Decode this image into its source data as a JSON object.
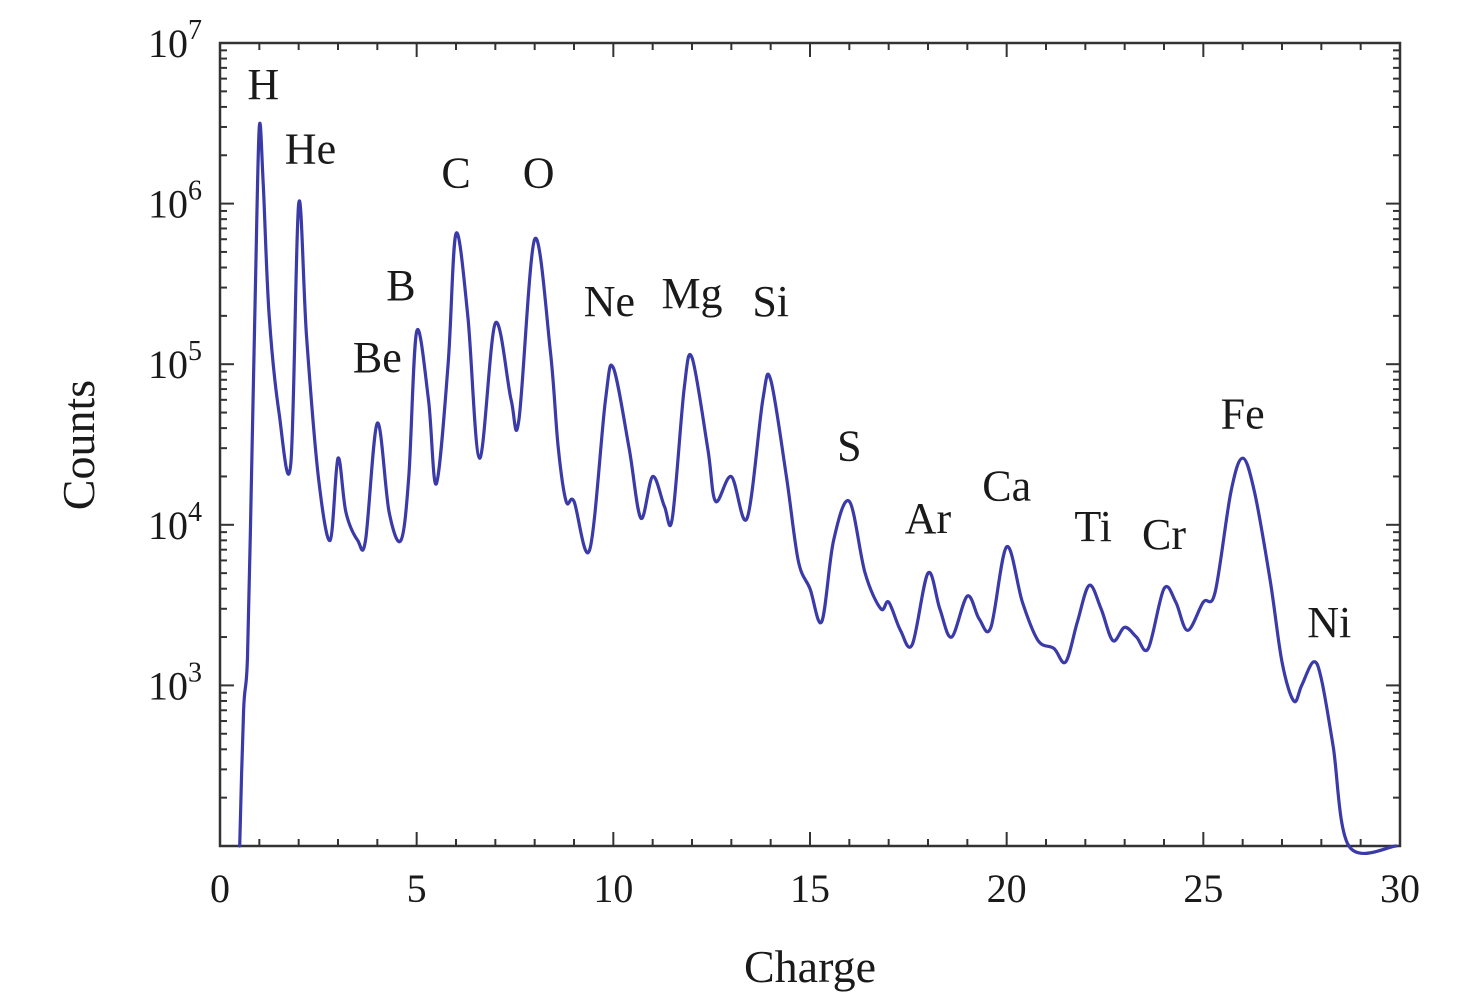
{
  "chart_data": {
    "type": "line",
    "xlabel": "Charge",
    "ylabel": "Counts",
    "xlim": [
      0,
      30
    ],
    "ylim_log10": [
      2.0,
      7.0
    ],
    "yscale": "log",
    "grid": false,
    "legend": "none",
    "x_ticks": [
      0,
      5,
      10,
      15,
      20,
      25,
      30
    ],
    "y_ticks": [
      {
        "base": "10",
        "exp": "3",
        "value": 1000
      },
      {
        "base": "10",
        "exp": "4",
        "value": 10000
      },
      {
        "base": "10",
        "exp": "5",
        "value": 100000
      },
      {
        "base": "10",
        "exp": "6",
        "value": 1000000
      },
      {
        "base": "10",
        "exp": "7",
        "value": 10000000
      }
    ],
    "series": [
      {
        "color": "#3a3aa8",
        "points": [
          [
            0.5,
            100
          ],
          [
            0.6,
            700
          ],
          [
            0.7,
            1500
          ],
          [
            0.8,
            20000
          ],
          [
            0.9,
            300000
          ],
          [
            1.0,
            3000000
          ],
          [
            1.1,
            1300000
          ],
          [
            1.25,
            200000
          ],
          [
            1.5,
            50000
          ],
          [
            1.8,
            24000
          ],
          [
            2.0,
            1000000
          ],
          [
            2.2,
            150000
          ],
          [
            2.5,
            20000
          ],
          [
            2.8,
            8000
          ],
          [
            3.0,
            26000
          ],
          [
            3.2,
            12000
          ],
          [
            3.5,
            8000
          ],
          [
            3.7,
            8000
          ],
          [
            4.0,
            43000
          ],
          [
            4.3,
            12000
          ],
          [
            4.6,
            8000
          ],
          [
            4.8,
            20000
          ],
          [
            5.0,
            160000
          ],
          [
            5.3,
            60000
          ],
          [
            5.5,
            18000
          ],
          [
            5.8,
            100000
          ],
          [
            6.0,
            650000
          ],
          [
            6.3,
            200000
          ],
          [
            6.6,
            26000
          ],
          [
            7.0,
            180000
          ],
          [
            7.4,
            60000
          ],
          [
            7.6,
            45000
          ],
          [
            8.0,
            600000
          ],
          [
            8.4,
            120000
          ],
          [
            8.6,
            30000
          ],
          [
            8.8,
            14000
          ],
          [
            9.0,
            14000
          ],
          [
            9.4,
            7000
          ],
          [
            9.8,
            60000
          ],
          [
            10.0,
            95000
          ],
          [
            10.4,
            30000
          ],
          [
            10.7,
            11000
          ],
          [
            11.0,
            20000
          ],
          [
            11.3,
            13000
          ],
          [
            11.5,
            11000
          ],
          [
            11.8,
            70000
          ],
          [
            12.0,
            110000
          ],
          [
            12.4,
            30000
          ],
          [
            12.6,
            14000
          ],
          [
            13.0,
            20000
          ],
          [
            13.4,
            11000
          ],
          [
            13.8,
            60000
          ],
          [
            14.0,
            80000
          ],
          [
            14.4,
            20000
          ],
          [
            14.7,
            6000
          ],
          [
            15.0,
            4000
          ],
          [
            15.3,
            2500
          ],
          [
            15.6,
            8000
          ],
          [
            16.0,
            14000
          ],
          [
            16.4,
            5000
          ],
          [
            16.8,
            3000
          ],
          [
            17.0,
            3300
          ],
          [
            17.3,
            2200
          ],
          [
            17.6,
            1800
          ],
          [
            18.0,
            5000
          ],
          [
            18.3,
            3000
          ],
          [
            18.6,
            2000
          ],
          [
            19.0,
            3600
          ],
          [
            19.3,
            2600
          ],
          [
            19.6,
            2300
          ],
          [
            20.0,
            7300
          ],
          [
            20.4,
            3300
          ],
          [
            20.8,
            1900
          ],
          [
            21.2,
            1700
          ],
          [
            21.5,
            1400
          ],
          [
            21.8,
            2500
          ],
          [
            22.1,
            4200
          ],
          [
            22.4,
            3000
          ],
          [
            22.7,
            1900
          ],
          [
            23.0,
            2300
          ],
          [
            23.3,
            2000
          ],
          [
            23.6,
            1700
          ],
          [
            24.0,
            4000
          ],
          [
            24.3,
            3300
          ],
          [
            24.6,
            2200
          ],
          [
            25.0,
            3300
          ],
          [
            25.3,
            3800
          ],
          [
            25.7,
            16000
          ],
          [
            26.0,
            26000
          ],
          [
            26.3,
            16000
          ],
          [
            26.7,
            4500
          ],
          [
            27.0,
            1400
          ],
          [
            27.3,
            800
          ],
          [
            27.5,
            1000
          ],
          [
            27.8,
            1400
          ],
          [
            28.0,
            1100
          ],
          [
            28.3,
            420
          ],
          [
            28.7,
            100
          ],
          [
            29.9,
            100
          ]
        ]
      }
    ],
    "annotations": [
      {
        "text": "H",
        "x": 1.1,
        "y_log10": 6.65
      },
      {
        "text": "He",
        "x": 2.3,
        "y_log10": 6.25
      },
      {
        "text": "Be",
        "x": 4.0,
        "y_log10": 4.95
      },
      {
        "text": "B",
        "x": 4.6,
        "y_log10": 5.4
      },
      {
        "text": "C",
        "x": 6.0,
        "y_log10": 6.1
      },
      {
        "text": "O",
        "x": 8.1,
        "y_log10": 6.1
      },
      {
        "text": "Ne",
        "x": 9.9,
        "y_log10": 5.3
      },
      {
        "text": "Mg",
        "x": 12.0,
        "y_log10": 5.35
      },
      {
        "text": "Si",
        "x": 14.0,
        "y_log10": 5.3
      },
      {
        "text": "S",
        "x": 16.0,
        "y_log10": 4.4
      },
      {
        "text": "Ar",
        "x": 18.0,
        "y_log10": 3.95
      },
      {
        "text": "Ca",
        "x": 20.0,
        "y_log10": 4.15
      },
      {
        "text": "Ti",
        "x": 22.2,
        "y_log10": 3.9
      },
      {
        "text": "Cr",
        "x": 24.0,
        "y_log10": 3.85
      },
      {
        "text": "Fe",
        "x": 26.0,
        "y_log10": 4.6
      },
      {
        "text": "Ni",
        "x": 28.2,
        "y_log10": 3.3
      }
    ]
  }
}
